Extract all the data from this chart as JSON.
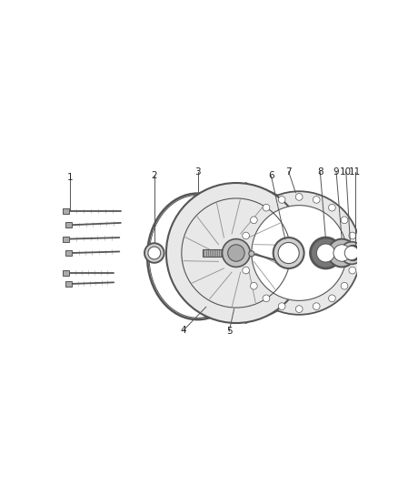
{
  "background_color": "#ffffff",
  "fig_width": 4.38,
  "fig_height": 5.33,
  "dpi": 100,
  "line_color": "#444444",
  "label_color": "#222222",
  "part_line_color": "#555555",
  "bolt_color": "#888888",
  "bolt_head_color": "#aaaaaa",
  "converter_fc": "#e0e0e0",
  "converter_dark": "#999999",
  "ring_fc": "#cccccc",
  "gasket_hole_color": "#cccccc",
  "oring_dark": "#333333",
  "oring_mid": "#888888",
  "oring_light": "#cccccc"
}
